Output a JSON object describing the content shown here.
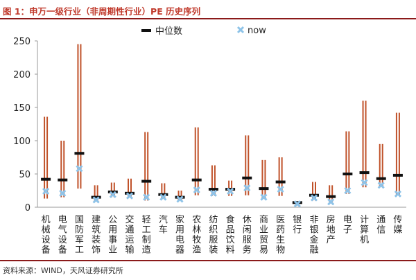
{
  "title": "图 1：申万一级行业（非周期性行业）PE 历史序列",
  "source": "资料来源：WIND，天风证券研究所",
  "legend": [
    {
      "label": "中位数",
      "key": "median"
    },
    {
      "label": "now",
      "key": "now"
    }
  ],
  "colors": {
    "range_bar": "#c0522a",
    "median": "#111111",
    "now": "#8ec3e8",
    "title": "#c0392b",
    "rule": "#8b1a1a",
    "axis": "#999999"
  },
  "chart_data": {
    "type": "range",
    "title": "",
    "xlabel": "",
    "ylabel": "",
    "ylim": [
      0,
      250
    ],
    "yticks": [
      0,
      50,
      100,
      150,
      200,
      250
    ],
    "grid": false,
    "legend_position": "top",
    "categories": [
      "机械设备",
      "电气设备",
      "国防军工",
      "建筑装饰",
      "公用事业",
      "交通运输",
      "轻工制造",
      "汽车",
      "家用电器",
      "农林牧渔",
      "纺织服装",
      "食品饮料",
      "休闲服务",
      "商业贸易",
      "医药生物",
      "银行",
      "非银金融",
      "房地产",
      "电子",
      "计算机",
      "通信",
      "传媒"
    ],
    "series": [
      {
        "name": "max",
        "values": [
          136,
          100,
          245,
          33,
          37,
          43,
          113,
          36,
          25,
          120,
          63,
          40,
          108,
          71,
          75,
          9,
          38,
          33,
          114,
          160,
          95,
          142
        ]
      },
      {
        "name": "min",
        "values": [
          13,
          15,
          28,
          9,
          15,
          14,
          10,
          12,
          10,
          18,
          17,
          17,
          18,
          14,
          17,
          5,
          10,
          8,
          20,
          30,
          30,
          18
        ]
      },
      {
        "name": "中位数",
        "values": [
          42,
          41,
          81,
          15,
          23,
          21,
          39,
          19,
          15,
          41,
          27,
          27,
          44,
          28,
          38,
          7,
          18,
          16,
          50,
          52,
          43,
          48
        ]
      },
      {
        "name": "now",
        "values": [
          24,
          21,
          58,
          11,
          19,
          17,
          15,
          15,
          12,
          26,
          21,
          24,
          29,
          15,
          27,
          5,
          14,
          8,
          25,
          37,
          33,
          20
        ]
      }
    ]
  }
}
